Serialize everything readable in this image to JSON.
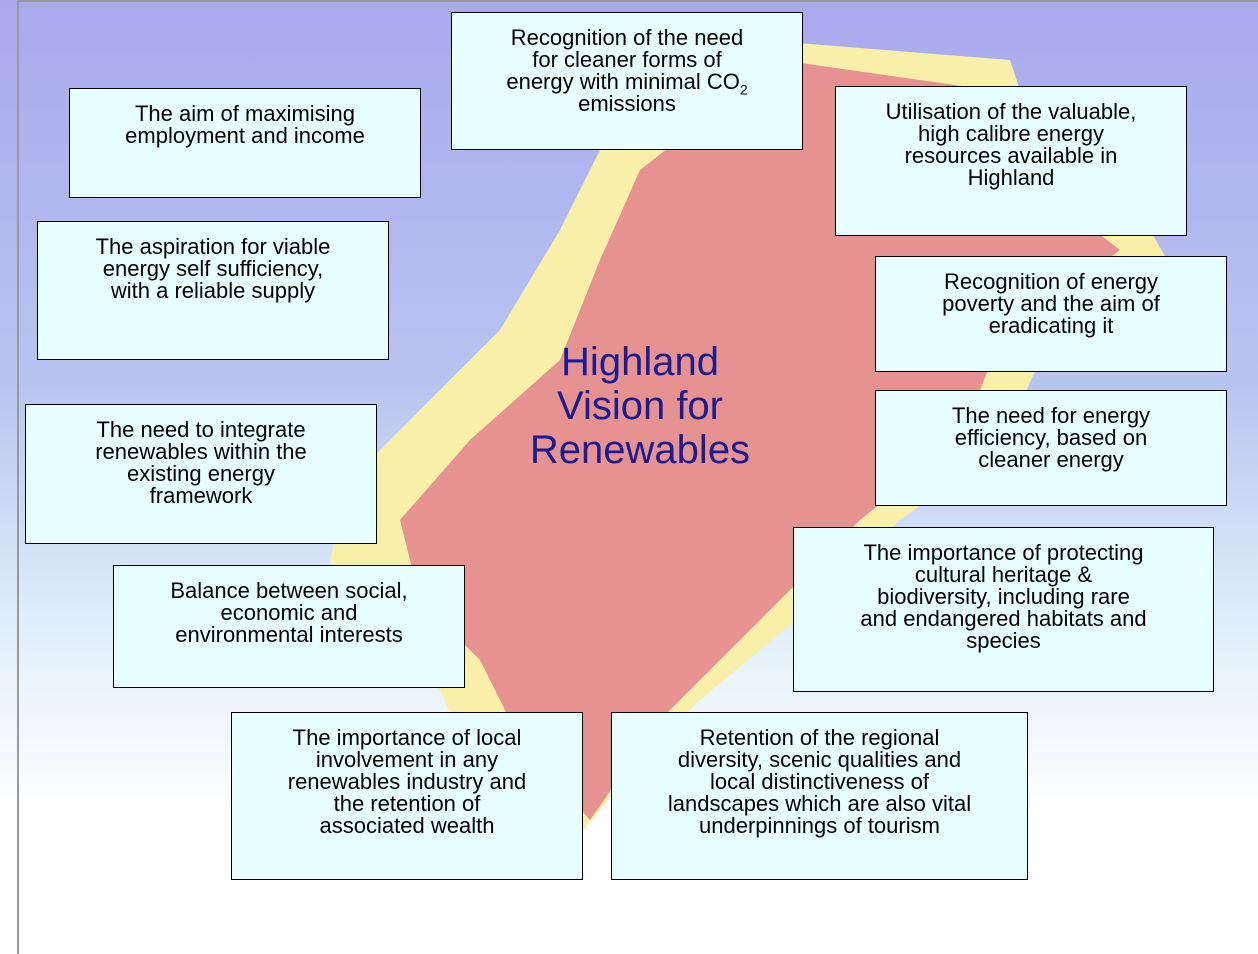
{
  "title": [
    "Highland",
    "Vision for",
    "Renewables"
  ],
  "boxes": [
    {
      "lines": [
        "Recognition of the need",
        "for cleaner forms of",
        "energy with minimal CO",
        "emissions"
      ],
      "sub": "2"
    },
    {
      "lines": [
        "The aim of maximising",
        "employment and income"
      ]
    },
    {
      "lines": [
        "Utilisation of the valuable,",
        "high calibre energy",
        "resources available in",
        "Highland"
      ]
    },
    {
      "lines": [
        "The aspiration for viable",
        "energy self sufficiency,",
        "with a reliable supply"
      ]
    },
    {
      "lines": [
        "Recognition of energy",
        "poverty and the aim of",
        "eradicating it"
      ]
    },
    {
      "lines": [
        "The need to integrate",
        "renewables within the",
        "existing energy",
        "framework"
      ]
    },
    {
      "lines": [
        "The need for energy",
        "efficiency, based on",
        "cleaner energy"
      ]
    },
    {
      "lines": [
        "Balance between social,",
        "economic and",
        "environmental interests"
      ]
    },
    {
      "lines": [
        "The importance of protecting",
        "cultural heritage &",
        "biodiversity, including rare",
        "and endangered habitats and",
        "species"
      ]
    },
    {
      "lines": [
        "The importance of local",
        "involvement in any",
        "renewables industry and",
        "the retention of",
        "associated wealth"
      ]
    },
    {
      "lines": [
        "Retention of the regional",
        "diversity, scenic qualities and",
        "local distinctiveness of",
        "landscapes which are also vital",
        "underpinnings of tourism"
      ]
    }
  ]
}
